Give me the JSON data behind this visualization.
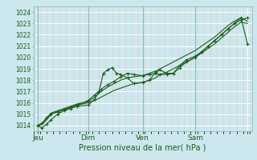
{
  "title": "",
  "xlabel": "Pression niveau de la mer( hPa )",
  "bg_color": "#cce8ee",
  "grid_color": "#ffffff",
  "line_color": "#1a5c1a",
  "ylim": [
    1013.5,
    1024.5
  ],
  "xlim": [
    0,
    100
  ],
  "yticks": [
    1014,
    1015,
    1016,
    1017,
    1018,
    1019,
    1020,
    1021,
    1022,
    1023,
    1024
  ],
  "xtick_positions": [
    2,
    25,
    50,
    74,
    98
  ],
  "xtick_labels": [
    "Jeu",
    "Dim",
    "Ven",
    "Sam",
    ""
  ],
  "vline_positions": [
    2,
    25,
    50,
    74
  ],
  "series": [
    {
      "x": [
        2,
        4,
        6,
        8,
        11,
        14,
        17,
        20,
        25,
        28,
        30,
        32,
        34,
        36,
        38,
        40,
        43,
        46,
        50,
        53,
        56,
        58,
        61,
        64,
        67,
        70,
        74,
        77,
        80,
        83,
        86,
        89,
        92,
        95,
        98
      ],
      "y": [
        1014.0,
        1013.8,
        1014.1,
        1014.5,
        1015.0,
        1015.3,
        1015.5,
        1015.7,
        1015.8,
        1016.3,
        1017.0,
        1018.6,
        1018.9,
        1019.1,
        1018.6,
        1018.5,
        1018.2,
        1017.7,
        1017.8,
        1018.0,
        1018.7,
        1018.9,
        1018.6,
        1018.6,
        1019.3,
        1019.8,
        1020.1,
        1020.5,
        1021.0,
        1021.5,
        1022.0,
        1022.5,
        1023.0,
        1023.3,
        1023.5
      ],
      "marker": "+"
    },
    {
      "x": [
        2,
        4,
        6,
        8,
        11,
        14,
        17,
        20,
        25,
        28,
        31,
        34,
        37,
        40,
        43,
        46,
        50,
        53,
        56,
        58,
        61,
        64,
        67,
        70,
        74,
        77,
        80,
        83,
        86,
        89,
        92,
        95,
        98
      ],
      "y": [
        1014.0,
        1014.1,
        1014.5,
        1015.0,
        1015.2,
        1015.4,
        1015.6,
        1015.8,
        1016.0,
        1016.2,
        1016.5,
        1016.8,
        1017.1,
        1017.3,
        1017.5,
        1017.7,
        1017.8,
        1018.0,
        1018.2,
        1018.5,
        1018.7,
        1019.0,
        1019.3,
        1019.6,
        1020.0,
        1020.4,
        1020.8,
        1021.2,
        1021.7,
        1022.2,
        1022.7,
        1023.1,
        1023.0
      ],
      "marker": null
    },
    {
      "x": [
        2,
        4,
        6,
        8,
        11,
        14,
        17,
        20,
        25,
        28,
        31,
        34,
        37,
        40,
        43,
        46,
        50,
        53,
        56,
        58,
        61,
        64,
        67,
        70,
        74,
        77,
        80,
        83,
        86,
        89,
        92,
        95,
        98
      ],
      "y": [
        1014.0,
        1014.2,
        1014.6,
        1015.1,
        1015.3,
        1015.5,
        1015.7,
        1015.9,
        1016.1,
        1016.5,
        1017.0,
        1017.4,
        1017.7,
        1018.0,
        1018.2,
        1018.3,
        1018.4,
        1018.6,
        1018.8,
        1019.0,
        1019.3,
        1019.6,
        1019.9,
        1020.2,
        1020.6,
        1021.0,
        1021.4,
        1021.8,
        1022.3,
        1022.8,
        1023.2,
        1023.5,
        1023.2
      ],
      "marker": null
    },
    {
      "x": [
        2,
        4,
        6,
        8,
        11,
        14,
        17,
        20,
        25,
        28,
        31,
        34,
        37,
        40,
        43,
        46,
        50,
        53,
        56,
        58,
        61,
        64,
        67,
        70,
        74,
        77,
        80,
        83,
        86,
        89,
        92,
        95,
        98
      ],
      "y": [
        1014.0,
        1014.2,
        1014.7,
        1015.0,
        1015.2,
        1015.4,
        1015.6,
        1015.8,
        1016.2,
        1016.7,
        1017.2,
        1017.6,
        1017.9,
        1018.3,
        1018.6,
        1018.5,
        1018.4,
        1018.5,
        1018.6,
        1018.5,
        1018.5,
        1018.6,
        1019.1,
        1019.6,
        1020.0,
        1020.5,
        1021.0,
        1021.5,
        1022.0,
        1022.5,
        1023.0,
        1023.5,
        1021.2
      ],
      "marker": "+"
    }
  ]
}
